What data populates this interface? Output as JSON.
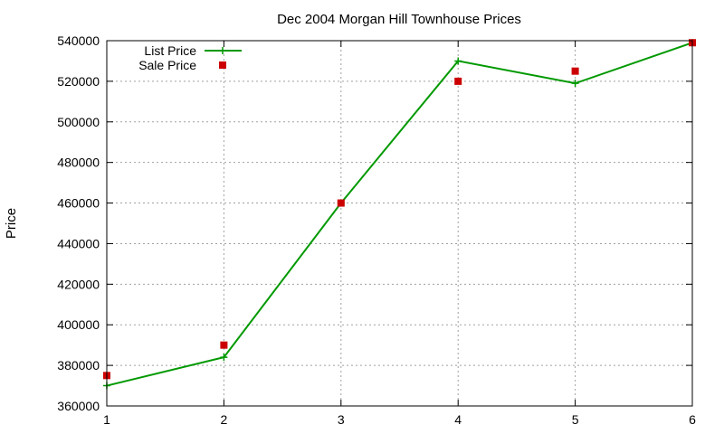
{
  "chart_data": {
    "type": "line",
    "title": "Dec 2004 Morgan Hill Townhouse Prices",
    "xlabel": "",
    "ylabel": "Price",
    "xlim": [
      1,
      6
    ],
    "ylim": [
      360000,
      540000
    ],
    "x_ticks": [
      1,
      2,
      3,
      4,
      5,
      6
    ],
    "y_ticks": [
      360000,
      380000,
      400000,
      420000,
      440000,
      460000,
      480000,
      500000,
      520000,
      540000
    ],
    "grid": true,
    "legend_position": "top-left",
    "x": [
      1,
      2,
      3,
      4,
      5,
      6
    ],
    "series": [
      {
        "name": "List Price",
        "style": "line-with-plus-markers",
        "color": "#009900",
        "values": [
          370000,
          384000,
          460000,
          530000,
          519000,
          539000
        ]
      },
      {
        "name": "Sale Price",
        "style": "square-markers",
        "color": "#cc0000",
        "values": [
          375000,
          390000,
          460000,
          520000,
          525000,
          539000
        ]
      }
    ]
  }
}
